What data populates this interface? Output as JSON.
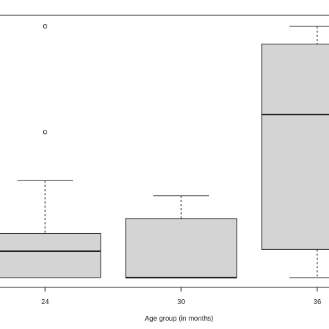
{
  "chart_data": {
    "type": "boxplot",
    "xlabel": "Age group (in months)",
    "categories": [
      "24",
      "30",
      "36"
    ],
    "boxes": [
      {
        "category": "24",
        "whisker_low": 0,
        "q1": 0,
        "median": 3,
        "q3": 5,
        "whisker_high": 11,
        "outliers": [
          16.5,
          28.5
        ]
      },
      {
        "category": "30",
        "whisker_low": 0,
        "q1": 0,
        "median": 0,
        "q3": 6.7,
        "whisker_high": 9.3,
        "outliers": []
      },
      {
        "category": "36",
        "whisker_low": 0,
        "q1": 3.2,
        "median": 18.5,
        "q3": 26.5,
        "whisker_high": 28.5,
        "outliers": []
      }
    ],
    "ylim": [
      0,
      28.5
    ],
    "grid": false,
    "colors": {
      "box_fill": "#d4d4d4",
      "stroke": "#222222"
    }
  }
}
